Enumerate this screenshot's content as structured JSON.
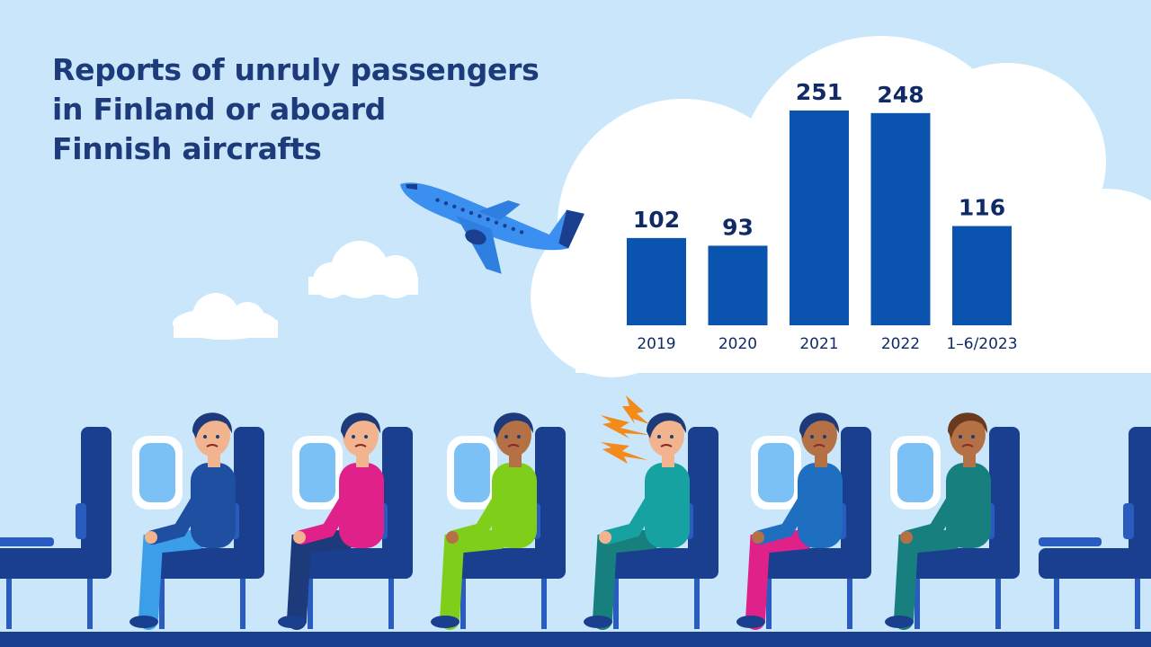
{
  "title_lines": [
    "Reports of unruly passengers",
    "in Finland or aboard",
    "Finnish aircrafts"
  ],
  "colors": {
    "sky": "#c9e6fb",
    "bar": "#0a54b0",
    "title": "#1d3a7a",
    "cloud": "#ffffff",
    "seat": "#1b3f8f",
    "plane": "#3b8ff0"
  },
  "chart_data": {
    "type": "bar",
    "categories": [
      "2019",
      "2020",
      "2021",
      "2022",
      "1–6/2023"
    ],
    "values": [
      102,
      93,
      251,
      248,
      116
    ],
    "value_labels": [
      "102",
      "93",
      "251",
      "248",
      "116"
    ],
    "title": "Reports of unruly passengers in Finland or aboard Finnish aircrafts",
    "xlabel": "",
    "ylabel": "",
    "ylim": [
      0,
      251
    ],
    "grid": false,
    "legend": "none"
  }
}
